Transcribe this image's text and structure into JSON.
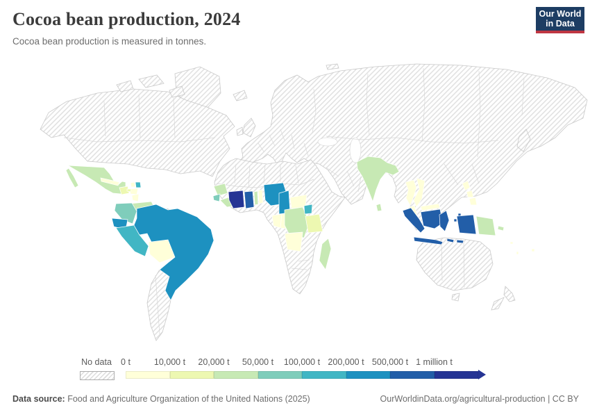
{
  "header": {
    "title": "Cocoa bean production, 2024",
    "subtitle": "Cocoa bean production is measured in tonnes."
  },
  "logo": {
    "line1": "Our World",
    "line2": "in Data",
    "bg_color": "#1d3d63",
    "accent_color": "#bf3642"
  },
  "legend": {
    "no_data_label": "No data",
    "ticks": [
      "0 t",
      "10,000 t",
      "20,000 t",
      "50,000 t",
      "100,000 t",
      "200,000 t",
      "500,000 t",
      "1 million t"
    ],
    "bin_colors": [
      "#ffffd9",
      "#edf8b1",
      "#c7e9b4",
      "#7fcdbb",
      "#41b6c4",
      "#1d91c0",
      "#225ea8",
      "#253494"
    ]
  },
  "chart_data": {
    "type": "heatmap",
    "subtype": "choropleth_world_map",
    "title": "Cocoa bean production, 2024",
    "unit": "tonnes",
    "legend_position": "bottom",
    "no_data_style": "diagonal-hatch",
    "bins": [
      "0–10,000 t",
      "10,000–20,000 t",
      "20,000–50,000 t",
      "50,000–100,000 t",
      "100,000–200,000 t",
      "200,000–500,000 t",
      "500,000 t–1 million t",
      "> 1 million t"
    ],
    "bin_colors": [
      "#ffffd9",
      "#edf8b1",
      "#c7e9b4",
      "#7fcdbb",
      "#41b6c4",
      "#1d91c0",
      "#225ea8",
      "#253494"
    ],
    "countries": [
      {
        "id": "cote-divoire",
        "name": "Côte d'Ivoire",
        "bin": "> 1 million t",
        "bin_index": 7
      },
      {
        "id": "ghana",
        "name": "Ghana",
        "bin": "500,000 t–1 million t",
        "bin_index": 6
      },
      {
        "id": "indonesia",
        "name": "Indonesia",
        "bin": "500,000 t–1 million t",
        "bin_index": 6
      },
      {
        "id": "nigeria",
        "name": "Nigeria",
        "bin": "200,000–500,000 t",
        "bin_index": 5
      },
      {
        "id": "cameroon",
        "name": "Cameroon",
        "bin": "200,000–500,000 t",
        "bin_index": 5
      },
      {
        "id": "brazil",
        "name": "Brazil",
        "bin": "200,000–500,000 t",
        "bin_index": 5
      },
      {
        "id": "ecuador",
        "name": "Ecuador",
        "bin": "200,000–500,000 t",
        "bin_index": 5
      },
      {
        "id": "peru",
        "name": "Peru",
        "bin": "100,000–200,000 t",
        "bin_index": 4
      },
      {
        "id": "dominican-republic",
        "name": "Dominican Republic",
        "bin": "100,000–200,000 t",
        "bin_index": 4
      },
      {
        "id": "uganda",
        "name": "Uganda",
        "bin": "100,000–200,000 t",
        "bin_index": 4
      },
      {
        "id": "colombia",
        "name": "Colombia",
        "bin": "50,000–100,000 t",
        "bin_index": 3
      },
      {
        "id": "sierra-leone",
        "name": "Sierra Leone",
        "bin": "50,000–100,000 t",
        "bin_index": 3
      },
      {
        "id": "liberia",
        "name": "Liberia",
        "bin": "20,000–50,000 t",
        "bin_index": 2
      },
      {
        "id": "guinea",
        "name": "Guinea",
        "bin": "20,000–50,000 t",
        "bin_index": 2
      },
      {
        "id": "togo",
        "name": "Togo",
        "bin": "20,000–50,000 t",
        "bin_index": 2
      },
      {
        "id": "mexico",
        "name": "Mexico",
        "bin": "20,000–50,000 t",
        "bin_index": 2
      },
      {
        "id": "india",
        "name": "India",
        "bin": "20,000–50,000 t",
        "bin_index": 2
      },
      {
        "id": "sri-lanka",
        "name": "Sri Lanka",
        "bin": "20,000–50,000 t",
        "bin_index": 2
      },
      {
        "id": "papua-new-guinea",
        "name": "Papua New Guinea",
        "bin": "20,000–50,000 t",
        "bin_index": 2
      },
      {
        "id": "venezuela",
        "name": "Venezuela",
        "bin": "20,000–50,000 t",
        "bin_index": 2
      },
      {
        "id": "dr-congo",
        "name": "Democratic Republic of Congo",
        "bin": "20,000–50,000 t",
        "bin_index": 2
      },
      {
        "id": "madagascar",
        "name": "Madagascar",
        "bin": "20,000–50,000 t",
        "bin_index": 2
      },
      {
        "id": "guatemala",
        "name": "Guatemala",
        "bin": "10,000–20,000 t",
        "bin_index": 1
      },
      {
        "id": "tanzania",
        "name": "Tanzania",
        "bin": "10,000–20,000 t",
        "bin_index": 1
      },
      {
        "id": "jamaica",
        "name": "Jamaica",
        "bin": "10,000–20,000 t",
        "bin_index": 1
      },
      {
        "id": "haiti",
        "name": "Haiti",
        "bin": "0–10,000 t",
        "bin_index": 0
      },
      {
        "id": "cuba",
        "name": "Cuba",
        "bin": "0–10,000 t",
        "bin_index": 0
      },
      {
        "id": "bolivia",
        "name": "Bolivia",
        "bin": "0–10,000 t",
        "bin_index": 0
      },
      {
        "id": "guyana",
        "name": "Guyana",
        "bin": "0–10,000 t",
        "bin_index": 0
      },
      {
        "id": "honduras",
        "name": "Honduras",
        "bin": "0–10,000 t",
        "bin_index": 0
      },
      {
        "id": "nicaragua",
        "name": "Nicaragua",
        "bin": "0–10,000 t",
        "bin_index": 0
      },
      {
        "id": "costa-rica",
        "name": "Costa Rica",
        "bin": "0–10,000 t",
        "bin_index": 0
      },
      {
        "id": "panama",
        "name": "Panama",
        "bin": "0–10,000 t",
        "bin_index": 0
      },
      {
        "id": "benin",
        "name": "Benin",
        "bin": "0–10,000 t",
        "bin_index": 0
      },
      {
        "id": "angola",
        "name": "Angola",
        "bin": "0–10,000 t",
        "bin_index": 0
      },
      {
        "id": "gabon",
        "name": "Gabon",
        "bin": "0–10,000 t",
        "bin_index": 0
      },
      {
        "id": "congo",
        "name": "Congo",
        "bin": "0–10,000 t",
        "bin_index": 0
      },
      {
        "id": "central-african-republic",
        "name": "Central African Republic",
        "bin": "0–10,000 t",
        "bin_index": 0
      },
      {
        "id": "thailand",
        "name": "Thailand",
        "bin": "0–10,000 t",
        "bin_index": 0
      },
      {
        "id": "vietnam",
        "name": "Vietnam",
        "bin": "0–10,000 t",
        "bin_index": 0
      },
      {
        "id": "malaysia",
        "name": "Malaysia",
        "bin": "0–10,000 t",
        "bin_index": 0
      },
      {
        "id": "philippines",
        "name": "Philippines",
        "bin": "0–10,000 t",
        "bin_index": 0
      },
      {
        "id": "fiji",
        "name": "Fiji",
        "bin": "0–10,000 t",
        "bin_index": 0
      },
      {
        "id": "solomon-islands",
        "name": "Solomon Islands",
        "bin": "0–10,000 t",
        "bin_index": 0
      },
      {
        "id": "vanuatu",
        "name": "Vanuatu",
        "bin": "0–10,000 t",
        "bin_index": 0
      }
    ]
  },
  "footer": {
    "datasource_label": "Data source:",
    "datasource_text": " Food and Agriculture Organization of the United Nations (2025)",
    "attribution": "OurWorldinData.org/agricultural-production | CC BY"
  }
}
